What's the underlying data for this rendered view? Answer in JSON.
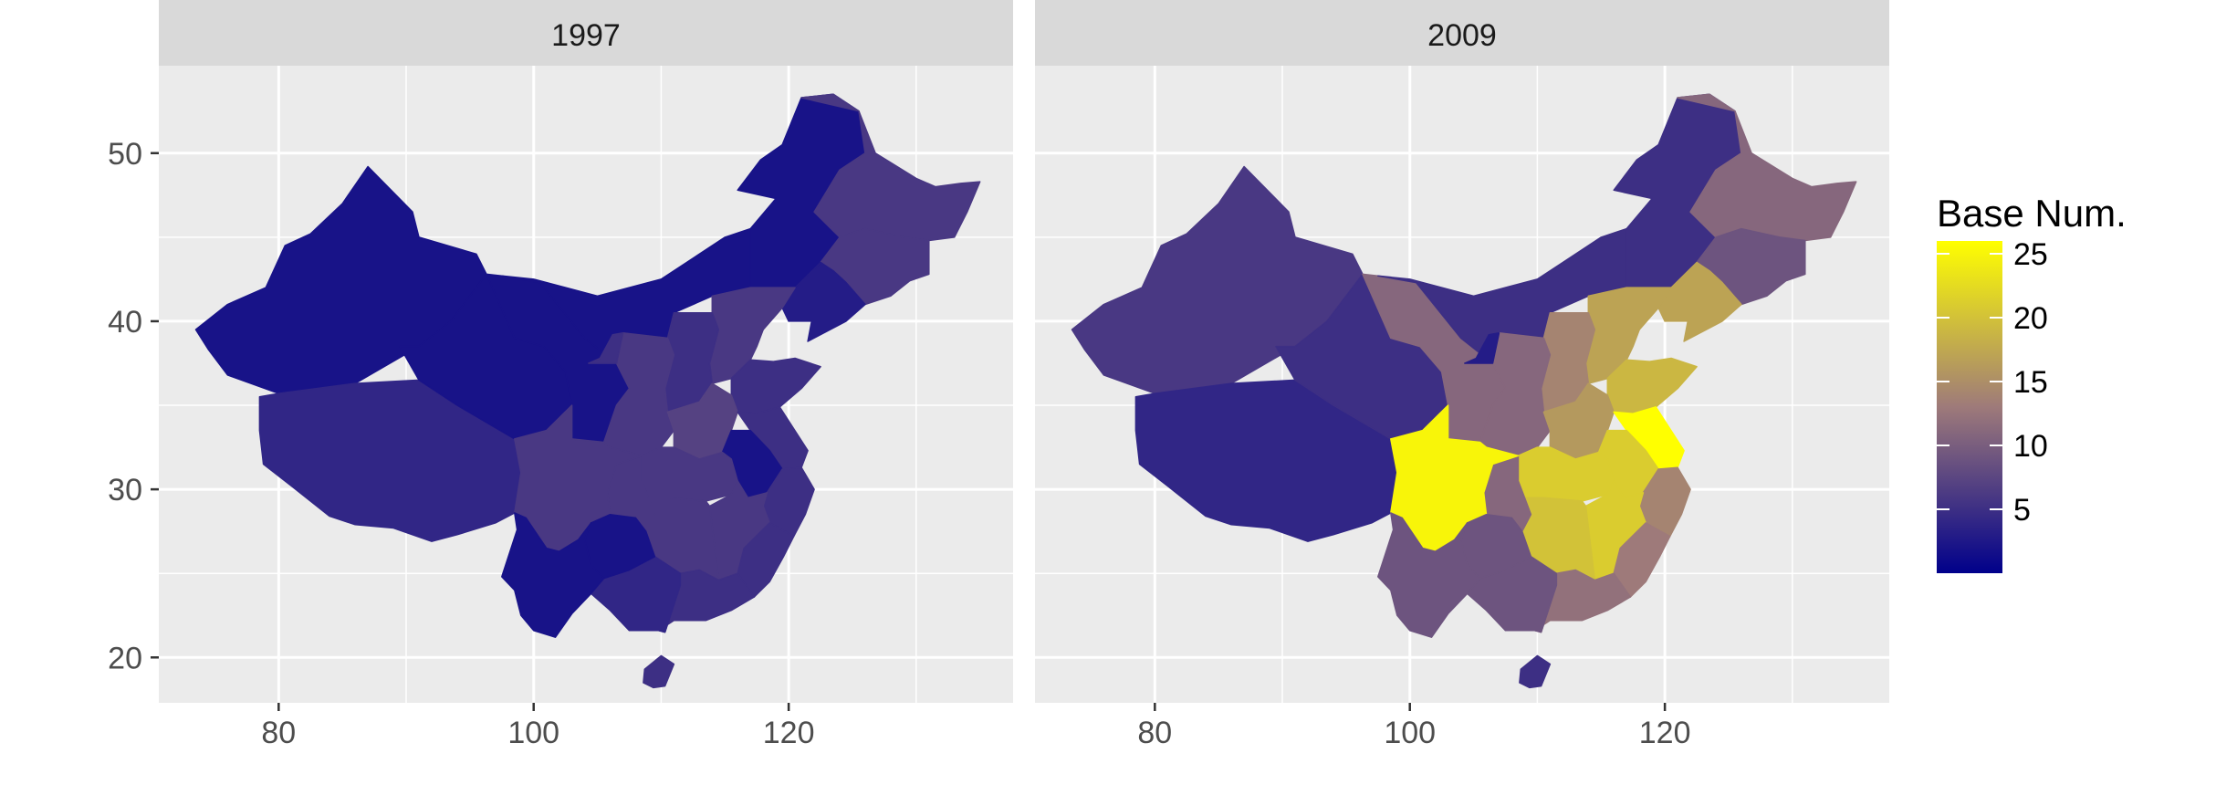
{
  "map": {
    "type": "choropleth-faceted",
    "facets": [
      {
        "label": "1997",
        "region_values": {
          "xinjiang": 2,
          "tibet": 4,
          "qinghai": 2,
          "gansu": 2,
          "inner_mongolia_w": 2,
          "inner_mongolia_e": 2,
          "heilongjiang": 6,
          "jilin": 6,
          "liaoning": 3,
          "ningxia": 5,
          "shaanxi": 6,
          "shanxi": 5,
          "hebei": 6,
          "beijing_tianjin": 5,
          "shandong": 5,
          "henan": 7,
          "hubei": 6,
          "anhui": 2,
          "jiangsu": 5,
          "zhejiang": 5,
          "jiangxi": 6,
          "hunan": 6,
          "fujian": 5,
          "guangdong": 5,
          "guangxi": 4,
          "sichuan": 6,
          "chongqing": 6,
          "guizhou": 2,
          "yunnan": 2,
          "hainan": 5
        }
      },
      {
        "label": "2009",
        "region_values": {
          "xinjiang": 6,
          "tibet": 4,
          "qinghai": 5,
          "gansu": 11,
          "inner_mongolia_w": 5,
          "inner_mongolia_e": 5,
          "heilongjiang": 11,
          "jilin": 9,
          "liaoning": 17,
          "ningxia": 3,
          "shaanxi": 11,
          "shanxi": 14,
          "hebei": 17,
          "beijing_tianjin": 17,
          "shandong": 19,
          "henan": 16,
          "hubei": 21,
          "anhui": 21,
          "jiangsu": 26,
          "zhejiang": 14,
          "jiangxi": 21,
          "hunan": 20,
          "fujian": 13,
          "guangdong": 12,
          "guangxi": 9,
          "sichuan": 25,
          "chongqing": 11,
          "guizhou": 9,
          "yunnan": 9,
          "hainan": 5
        }
      }
    ],
    "x_axis": {
      "ticks": [
        "80",
        "100",
        "120"
      ],
      "values": [
        80,
        100,
        120
      ],
      "lim": [
        70.6,
        137.6
      ]
    },
    "y_axis": {
      "ticks": [
        "50",
        "40",
        "30",
        "20"
      ],
      "values": [
        50,
        40,
        30,
        20
      ],
      "lim": [
        17.3,
        55.2
      ]
    },
    "legend": {
      "title": "Base Num.",
      "ticks": [
        "25",
        "20",
        "15",
        "10",
        "5"
      ],
      "tick_values": [
        25,
        20,
        15,
        10,
        5
      ],
      "range": [
        0,
        26
      ],
      "low_color": "#00008B",
      "mid_color": "#9E7A7A",
      "high_color": "#FFFF00",
      "placement": "right"
    },
    "panel_background": "#EBEBEB",
    "strip_background": "#D9D9D9",
    "grid_color": "#FFFFFF"
  }
}
